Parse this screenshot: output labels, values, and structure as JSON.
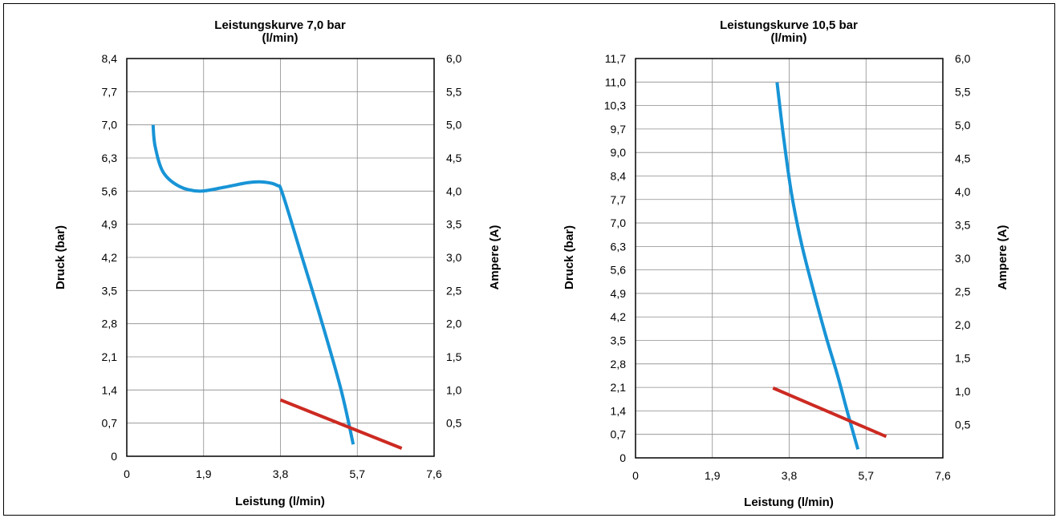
{
  "colors": {
    "pressure": "#1894d6",
    "current": "#cc2a22",
    "grid": "#8c8c8c"
  },
  "chart_data": [
    {
      "type": "line",
      "title": "Leistungskurve 7,0 bar",
      "subtitle": "(l/min)",
      "xlabel": "Leistung (l/min)",
      "ylabel": "Druck (bar)",
      "y2label": "Ampere (A)",
      "xlim": [
        0,
        7.6
      ],
      "ylim": [
        0,
        8.4
      ],
      "y2lim": [
        0,
        6.0
      ],
      "xticks": [
        "0",
        "1,9",
        "3,8",
        "5,7",
        "7,6"
      ],
      "yticks": [
        "0",
        "0,7",
        "1,4",
        "2,1",
        "2,8",
        "3,5",
        "4,2",
        "4,9",
        "5,6",
        "6,3",
        "7,0",
        "7,7",
        "8,4"
      ],
      "y2ticks": [
        "0,5",
        "1,0",
        "1,5",
        "2,0",
        "2,5",
        "3,0",
        "3,5",
        "4,0",
        "4,5",
        "5,0",
        "5,5",
        "6,0"
      ],
      "grid": true,
      "series": [
        {
          "axis": "left",
          "color": "#1894d6",
          "x": [
            0.65,
            0.7,
            0.9,
            1.3,
            1.8,
            2.4,
            3.0,
            3.4,
            3.72,
            3.85,
            4.3,
            4.8,
            5.3,
            5.6
          ],
          "y": [
            7.0,
            6.55,
            6.0,
            5.7,
            5.6,
            5.68,
            5.78,
            5.79,
            5.72,
            5.55,
            4.3,
            2.9,
            1.4,
            0.25
          ]
        },
        {
          "axis": "right",
          "x": [
            3.8,
            6.8
          ],
          "y": [
            0.85,
            0.12
          ],
          "color": "#cc2a22"
        }
      ]
    },
    {
      "type": "line",
      "title": "Leistungskurve 10,5 bar",
      "subtitle": "(l/min)",
      "xlabel": "Leistung (l/min)",
      "ylabel": "Druck (bar)",
      "y2label": "Ampere (A)",
      "xlim": [
        0,
        7.6
      ],
      "ylim": [
        0,
        11.7
      ],
      "y2lim": [
        0,
        6.0
      ],
      "xticks": [
        "0",
        "1,9",
        "3,8",
        "5,7",
        "7,6"
      ],
      "yticks": [
        "0",
        "0,7",
        "1,4",
        "2,1",
        "2,8",
        "3,5",
        "4,2",
        "4,9",
        "5,6",
        "6,3",
        "7,0",
        "7,7",
        "8,4",
        "9,0",
        "9,7",
        "10,3",
        "11,0",
        "11,7"
      ],
      "y2ticks": [
        "0,5",
        "1,0",
        "1,5",
        "2,0",
        "2,5",
        "3,0",
        "3,5",
        "4,0",
        "4,5",
        "5,0",
        "5,5",
        "6,0"
      ],
      "grid": true,
      "series": [
        {
          "axis": "left",
          "color": "#1894d6",
          "x": [
            3.5,
            3.65,
            3.85,
            4.1,
            4.4,
            4.7,
            5.0,
            5.25,
            5.5
          ],
          "y": [
            11.0,
            9.5,
            7.8,
            6.3,
            4.9,
            3.6,
            2.4,
            1.3,
            0.25
          ]
        },
        {
          "axis": "right",
          "x": [
            3.4,
            6.2
          ],
          "y": [
            1.05,
            0.32
          ],
          "color": "#cc2a22"
        }
      ]
    }
  ]
}
